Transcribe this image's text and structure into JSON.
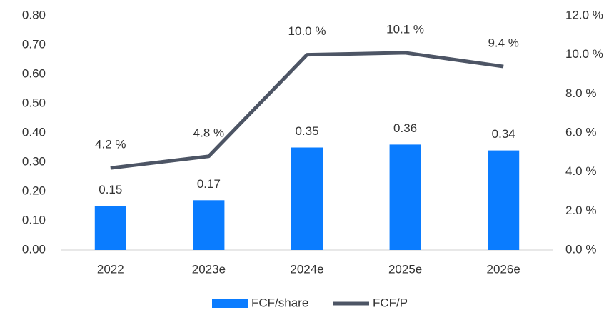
{
  "chart_data": {
    "type": "bar",
    "categories": [
      "2022",
      "2023e",
      "2024e",
      "2025e",
      "2026e"
    ],
    "series": [
      {
        "name": "FCF/share",
        "type": "bar",
        "color": "#0a7cff",
        "values": [
          0.15,
          0.17,
          0.35,
          0.36,
          0.34
        ]
      },
      {
        "name": "FCF/P",
        "type": "line",
        "axis": "y2",
        "color": "#4d5565",
        "values": [
          4.2,
          4.8,
          10.0,
          10.1,
          9.4
        ],
        "value_labels": [
          "4.2 %",
          "4.8 %",
          "10.0 %",
          "10.1 %",
          "9.4 %"
        ]
      }
    ],
    "ylim": [
      0,
      0.8
    ],
    "yticks": [
      {
        "value": 0,
        "label": "0.00"
      },
      {
        "value": 0.1,
        "label": "0.10"
      },
      {
        "value": 0.2,
        "label": "0.20"
      },
      {
        "value": 0.3,
        "label": "0.30"
      },
      {
        "value": 0.4,
        "label": "0.40"
      },
      {
        "value": 0.5,
        "label": "0.50"
      },
      {
        "value": 0.6,
        "label": "0.60"
      },
      {
        "value": 0.7,
        "label": "0.70"
      },
      {
        "value": 0.8,
        "label": "0.80"
      }
    ],
    "y2lim": [
      0,
      12
    ],
    "y2ticks": [
      {
        "value": 0,
        "label": "0.0 %"
      },
      {
        "value": 2,
        "label": "2.0 %"
      },
      {
        "value": 4,
        "label": "4.0 %"
      },
      {
        "value": 6,
        "label": "6.0 %"
      },
      {
        "value": 8,
        "label": "8.0 %"
      },
      {
        "value": 10,
        "label": "10.0 %"
      },
      {
        "value": 12,
        "label": "12.0 %"
      }
    ],
    "grid": false,
    "legend": "bottom"
  }
}
